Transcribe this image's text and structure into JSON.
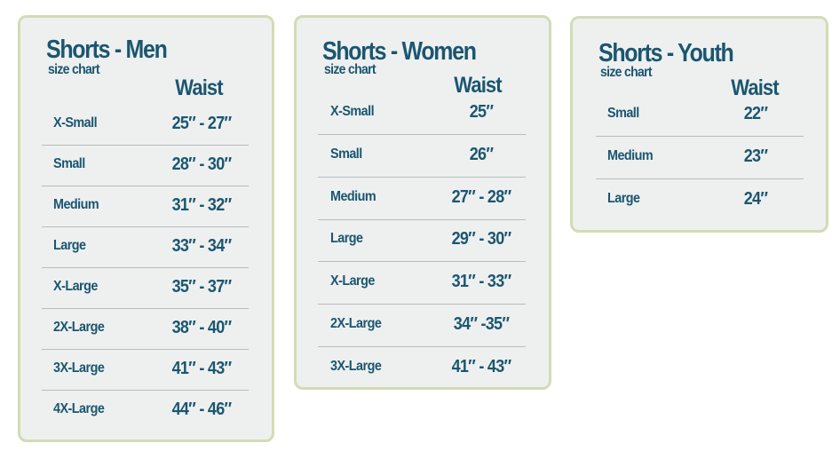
{
  "charts": [
    {
      "title": "Shorts - Men",
      "subtitle": "size chart",
      "column_header": "Waist",
      "rows": [
        {
          "size": "X-Small",
          "waist": "25″ - 27″"
        },
        {
          "size": "Small",
          "waist": "28″ - 30″"
        },
        {
          "size": "Medium",
          "waist": "31″ - 32″"
        },
        {
          "size": "Large",
          "waist": "33″ - 34″"
        },
        {
          "size": "X-Large",
          "waist": "35″ - 37″"
        },
        {
          "size": "2X-Large",
          "waist": "38″ - 40″"
        },
        {
          "size": "3X-Large",
          "waist": "41″ - 43″"
        },
        {
          "size": "4X-Large",
          "waist": "44″ - 46″"
        }
      ]
    },
    {
      "title": "Shorts - Women",
      "subtitle": "size chart",
      "column_header": "Waist",
      "rows": [
        {
          "size": "X-Small",
          "waist": "25″"
        },
        {
          "size": "Small",
          "waist": "26″"
        },
        {
          "size": "Medium",
          "waist": "27″ - 28″"
        },
        {
          "size": "Large",
          "waist": "29″ - 30″"
        },
        {
          "size": "X-Large",
          "waist": "31″ - 33″"
        },
        {
          "size": "2X-Large",
          "waist": "34″ -35″"
        },
        {
          "size": "3X-Large",
          "waist": "41″ - 43″"
        }
      ]
    },
    {
      "title": "Shorts - Youth",
      "subtitle": "size chart",
      "column_header": "Waist",
      "rows": [
        {
          "size": "Small",
          "waist": "22″"
        },
        {
          "size": "Medium",
          "waist": "23″"
        },
        {
          "size": "Large",
          "waist": "24″"
        }
      ]
    }
  ],
  "colors": {
    "text": "#1b5670",
    "card_background": "#eef0f0",
    "card_border": "#d2dcb4",
    "divider": "#b7bcbc"
  }
}
